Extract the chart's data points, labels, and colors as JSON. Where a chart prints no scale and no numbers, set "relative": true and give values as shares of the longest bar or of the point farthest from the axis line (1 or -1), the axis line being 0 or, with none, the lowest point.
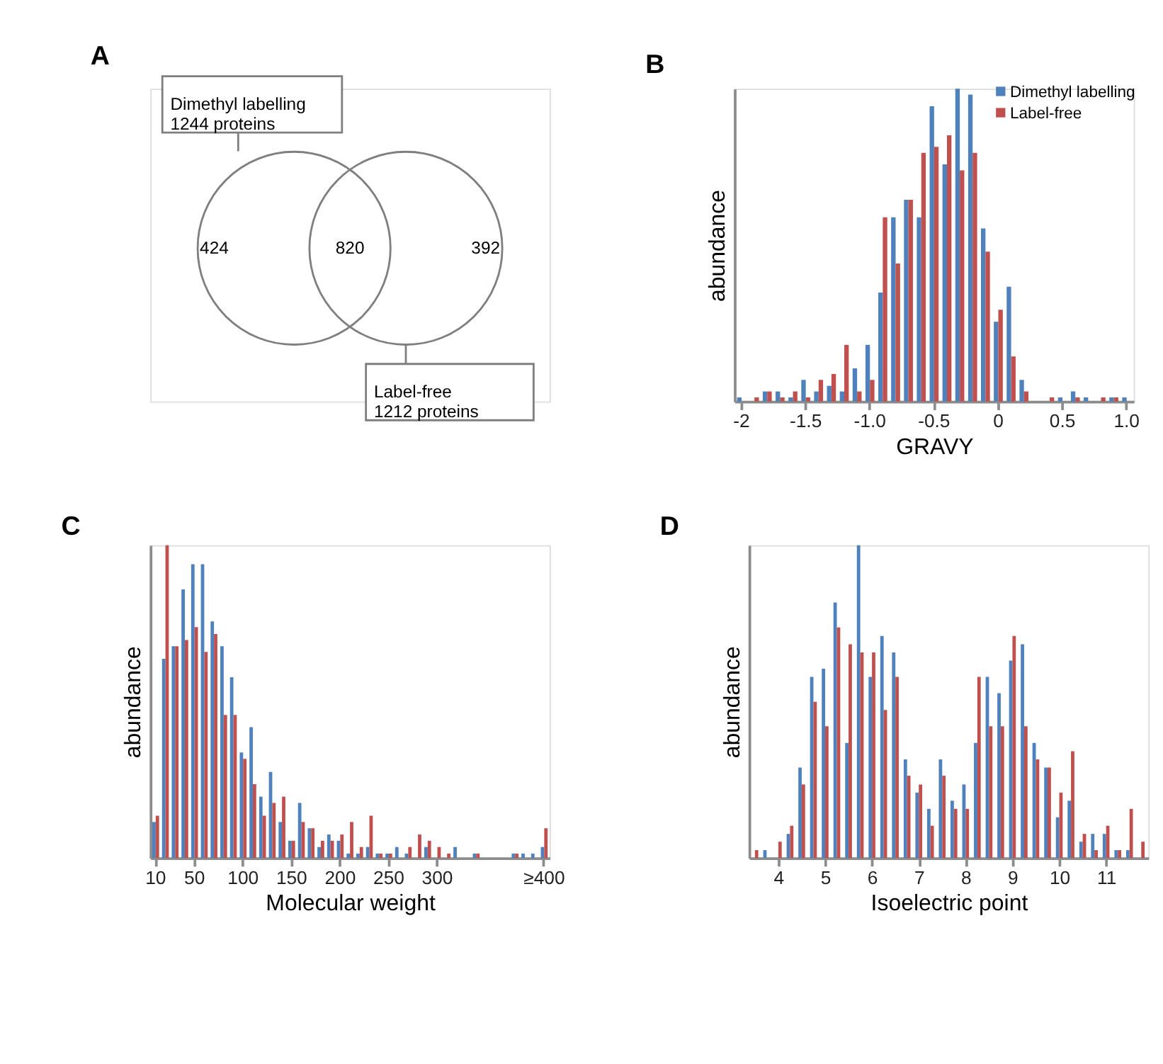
{
  "chart_data": [
    {
      "type": "other",
      "title": "A",
      "categories": [
        null,
        null,
        null
      ],
      "values": [
        424,
        820,
        392
      ],
      "data_labels": true,
      "annotations": [
        "Dimethyl labelling\n1244 proteins",
        "Label-free\n1212 proteins"
      ]
    },
    {
      "type": "bar",
      "title": "B",
      "xlabel": "GRAVY",
      "ylabel": "abundance",
      "relative": true,
      "legend": "top right",
      "categories": [
        "-2",
        null,
        null,
        null,
        null,
        "-1.5",
        null,
        null,
        null,
        null,
        "-1.0",
        null,
        null,
        null,
        null,
        "-0.5",
        null,
        null,
        null,
        null,
        "0",
        null,
        null,
        null,
        null,
        "0.5",
        null,
        null,
        null,
        null,
        "1.0"
      ],
      "series": [
        {
          "name": "Dimethyl labelling",
          "color": "#4f81bd",
          "values": [
            0.013,
            null,
            0.032,
            0.032,
            0.013,
            0.069,
            0.032,
            0.05,
            0.032,
            0.106,
            0.181,
            0.348,
            0.589,
            0.645,
            0.589,
            0.944,
            0.758,
            1.0,
            0.981,
            0.553,
            0.255,
            0.367,
            0.069,
            null,
            null,
            0.013,
            0.032,
            0.013,
            null,
            0.013,
            0.013
          ]
        },
        {
          "name": "Label-free",
          "color": "#c0504d",
          "values": [
            null,
            0.013,
            0.032,
            0.013,
            0.032,
            0.013,
            0.069,
            0.088,
            0.181,
            0.032,
            0.069,
            0.589,
            0.441,
            0.645,
            0.795,
            0.814,
            0.851,
            0.739,
            0.795,
            0.479,
            0.293,
            0.144,
            0.032,
            null,
            0.013,
            null,
            0.013,
            null,
            0.013,
            0.013,
            null
          ]
        }
      ]
    },
    {
      "type": "bar",
      "title": "C",
      "xlabel": "Molecular weight",
      "ylabel": "abundance",
      "relative": true,
      "categories": [
        "10",
        null,
        null,
        null,
        "50",
        null,
        null,
        null,
        null,
        "100",
        null,
        null,
        null,
        null,
        "150",
        null,
        null,
        null,
        null,
        "200",
        null,
        null,
        null,
        null,
        "250",
        null,
        null,
        null,
        null,
        "300",
        null,
        null,
        null,
        null,
        null,
        null,
        null,
        null,
        null,
        null,
        "≥400"
      ],
      "series": [
        {
          "color": "#4f81bd",
          "values": [
            0.115,
            0.637,
            0.677,
            0.859,
            0.939,
            0.939,
            0.756,
            0.677,
            0.578,
            0.337,
            0.418,
            0.196,
            0.275,
            0.115,
            0.055,
            0.176,
            0.095,
            0.035,
            0.075,
            0.055,
            0.014,
            0.014,
            0.035,
            0.014,
            0.014,
            0.035,
            0.014,
            null,
            0.035,
            null,
            null,
            0.035,
            null,
            0.014,
            null,
            null,
            null,
            0.014,
            0.014,
            0.014,
            0.035
          ]
        },
        {
          "color": "#c0504d",
          "values": [
            0.135,
            1.0,
            0.677,
            0.697,
            0.738,
            0.659,
            0.716,
            0.457,
            0.457,
            0.317,
            0.236,
            0.135,
            0.176,
            0.196,
            0.055,
            0.115,
            0.095,
            0.055,
            0.055,
            0.075,
            0.115,
            0.035,
            0.135,
            0.014,
            0.014,
            null,
            0.035,
            0.075,
            0.055,
            0.035,
            0.014,
            null,
            null,
            0.014,
            null,
            null,
            null,
            0.014,
            null,
            null,
            0.095
          ]
        }
      ]
    },
    {
      "type": "bar",
      "title": "D",
      "xlabel": "Isoelectric point",
      "ylabel": "abundance",
      "relative": true,
      "categories": [
        null,
        null,
        "4",
        null,
        null,
        null,
        "5",
        null,
        null,
        null,
        "6",
        null,
        null,
        null,
        "7",
        null,
        null,
        null,
        "8",
        null,
        null,
        null,
        "9",
        null,
        null,
        null,
        "10",
        null,
        null,
        null,
        "11",
        null,
        null,
        null
      ],
      "series": [
        {
          "color": "#4f81bd",
          "values": [
            null,
            0.025,
            null,
            0.077,
            0.289,
            0.579,
            0.605,
            0.817,
            0.368,
            1.0,
            0.579,
            0.71,
            0.657,
            0.315,
            0.209,
            0.157,
            0.315,
            0.183,
            0.235,
            0.368,
            0.579,
            0.527,
            0.631,
            0.683,
            0.368,
            0.289,
            0.13,
            0.183,
            0.052,
            0.077,
            0.077,
            0.025,
            0.025,
            null
          ]
        },
        {
          "color": "#c0504d",
          "values": [
            0.025,
            null,
            0.052,
            0.103,
            0.235,
            0.499,
            0.421,
            0.737,
            0.683,
            0.657,
            0.657,
            0.473,
            0.579,
            0.263,
            0.235,
            0.103,
            0.263,
            0.157,
            0.157,
            0.579,
            0.421,
            0.421,
            0.71,
            0.421,
            0.315,
            0.289,
            0.209,
            0.341,
            0.077,
            0.025,
            0.103,
            0.025,
            0.157,
            0.052
          ]
        }
      ]
    }
  ]
}
